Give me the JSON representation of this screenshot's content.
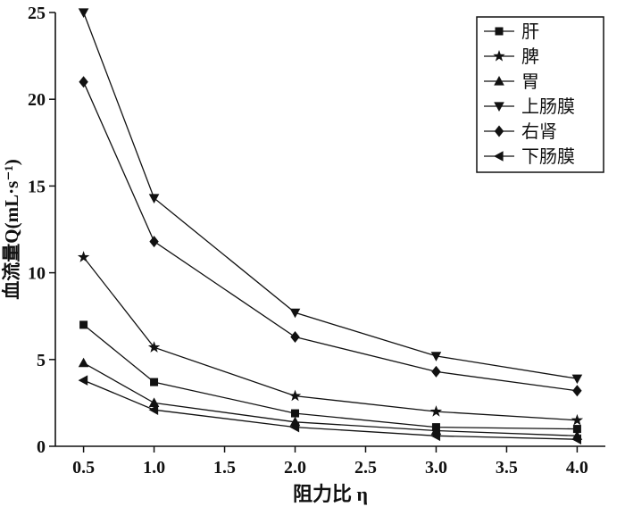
{
  "chart_data": {
    "type": "line",
    "title": "",
    "xlabel": "阻力比 η",
    "ylabel": "血流量Q(mL·s⁻¹)",
    "x": [
      0.5,
      1.0,
      2.0,
      3.0,
      4.0
    ],
    "series": [
      {
        "name": "肝",
        "marker": "square",
        "values": [
          7.0,
          3.7,
          1.9,
          1.1,
          1.0
        ]
      },
      {
        "name": "脾",
        "marker": "star",
        "values": [
          10.9,
          5.7,
          2.9,
          2.0,
          1.5
        ]
      },
      {
        "name": "胃",
        "marker": "triangle-up",
        "values": [
          4.8,
          2.5,
          1.4,
          0.9,
          0.6
        ]
      },
      {
        "name": "上肠膜",
        "marker": "triangle-down",
        "values": [
          25.0,
          14.3,
          7.7,
          5.2,
          3.9
        ]
      },
      {
        "name": "右肾",
        "marker": "diamond",
        "values": [
          21.0,
          11.8,
          6.3,
          4.3,
          3.2
        ]
      },
      {
        "name": "下肠膜",
        "marker": "triangle-left",
        "values": [
          3.8,
          2.1,
          1.1,
          0.6,
          0.4
        ]
      }
    ],
    "x_ticks": [
      "0.5",
      "1.0",
      "1.5",
      "2.0",
      "2.5",
      "3.0",
      "3.5",
      "4.0"
    ],
    "y_ticks": [
      0,
      5,
      10,
      15,
      20,
      25
    ],
    "xlim": [
      0.3,
      4.2
    ],
    "ylim": [
      0,
      25
    ],
    "grid": false,
    "legend_position": "top-right",
    "line_color": "#111111",
    "background": "#ffffff"
  }
}
